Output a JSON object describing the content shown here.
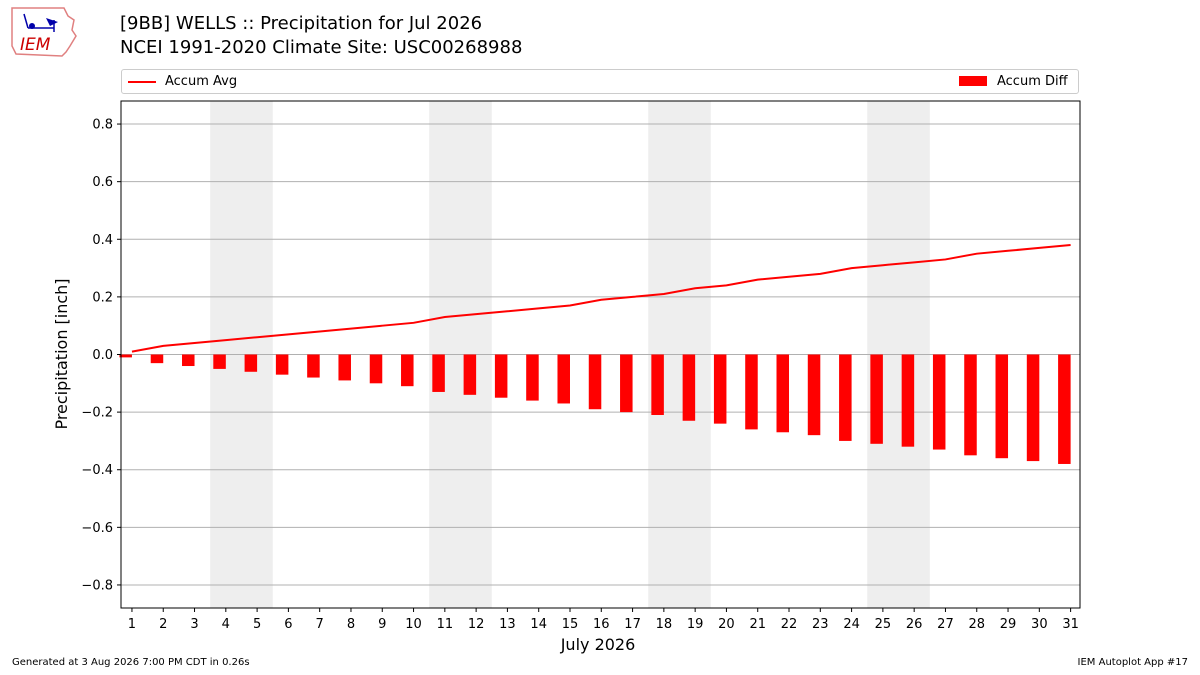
{
  "header": {
    "title_line1": "[9BB] WELLS :: Precipitation for Jul 2026",
    "title_line2": "NCEI 1991-2020 Climate Site: USC00268988"
  },
  "logo": {
    "text": "IEM"
  },
  "footer": {
    "left": "Generated at 3 Aug 2026 7:00 PM CDT in 0.26s",
    "right": "IEM Autoplot App #17"
  },
  "chart_data": {
    "type": "bar",
    "xlabel": "July 2026",
    "ylabel": "Precipitation [inch]",
    "ylim": [
      -0.88,
      0.88
    ],
    "yticks": [
      -0.8,
      -0.6,
      -0.4,
      -0.2,
      0.0,
      0.2,
      0.4,
      0.6,
      0.8
    ],
    "ytick_labels": [
      "−0.8",
      "−0.6",
      "−0.4",
      "−0.2",
      "0.0",
      "0.2",
      "0.4",
      "0.6",
      "0.8"
    ],
    "grid": "horizontal",
    "legend_position": "top, above plot",
    "weekend_shading": [
      [
        4,
        5
      ],
      [
        11,
        12
      ],
      [
        18,
        19
      ],
      [
        25,
        26
      ]
    ],
    "categories": [
      "1",
      "2",
      "3",
      "4",
      "5",
      "6",
      "7",
      "8",
      "9",
      "10",
      "11",
      "12",
      "13",
      "14",
      "15",
      "16",
      "17",
      "18",
      "19",
      "20",
      "21",
      "22",
      "23",
      "24",
      "25",
      "26",
      "27",
      "28",
      "29",
      "30",
      "31"
    ],
    "series": [
      {
        "name": "Accum Avg",
        "type": "line",
        "color": "#ff0000",
        "values": [
          0.01,
          0.03,
          0.04,
          0.05,
          0.06,
          0.07,
          0.08,
          0.09,
          0.1,
          0.11,
          0.13,
          0.14,
          0.15,
          0.16,
          0.17,
          0.19,
          0.2,
          0.21,
          0.23,
          0.24,
          0.26,
          0.27,
          0.28,
          0.3,
          0.31,
          0.32,
          0.33,
          0.35,
          0.36,
          0.37,
          0.38
        ]
      },
      {
        "name": "Accum Diff",
        "type": "bar",
        "color": "#ff0000",
        "values": [
          -0.01,
          -0.03,
          -0.04,
          -0.05,
          -0.06,
          -0.07,
          -0.08,
          -0.09,
          -0.1,
          -0.11,
          -0.13,
          -0.14,
          -0.15,
          -0.16,
          -0.17,
          -0.19,
          -0.2,
          -0.21,
          -0.23,
          -0.24,
          -0.26,
          -0.27,
          -0.28,
          -0.3,
          -0.31,
          -0.32,
          -0.33,
          -0.35,
          -0.36,
          -0.37,
          -0.38
        ]
      }
    ]
  }
}
